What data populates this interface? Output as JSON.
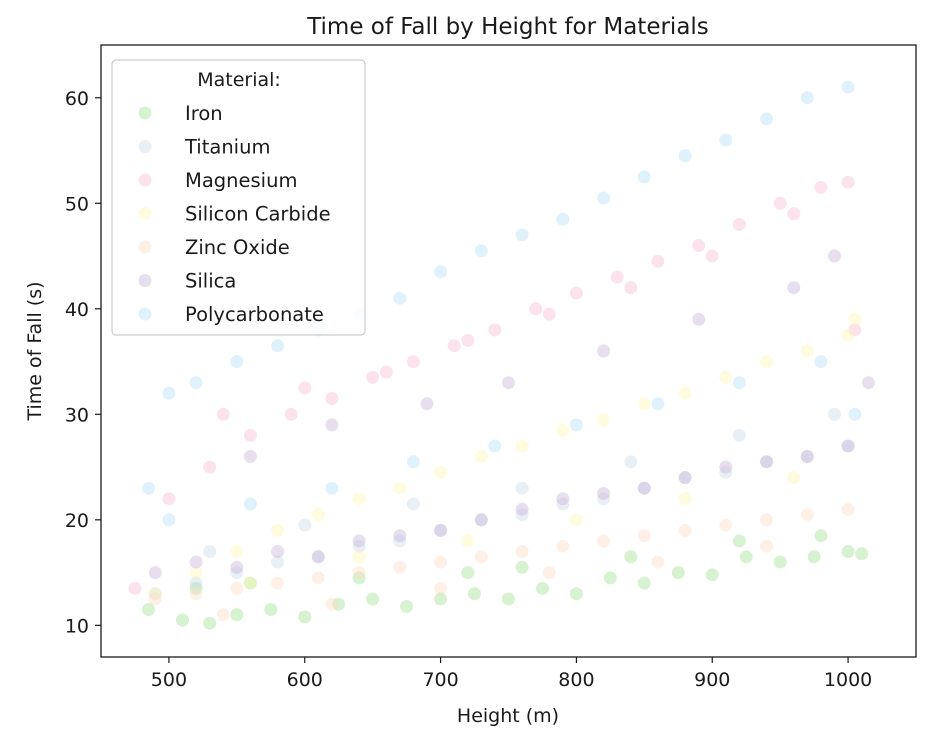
{
  "chart_data": {
    "type": "scatter",
    "title": "Time of Fall by Height for Materials",
    "xlabel": "Height (m)",
    "ylabel": "Time of Fall (s)",
    "xlim": [
      450,
      1050
    ],
    "ylim": [
      7,
      65
    ],
    "xticks": [
      500,
      600,
      700,
      800,
      900,
      1000
    ],
    "yticks": [
      10,
      20,
      30,
      40,
      50,
      60
    ],
    "grid": false,
    "marker_opacity": 0.4,
    "legend": {
      "title": "Material:",
      "placement": "top-left"
    },
    "series": [
      {
        "name": "Iron",
        "color": "#98df8a",
        "x": [
          485,
          510,
          530,
          550,
          575,
          600,
          625,
          650,
          675,
          700,
          725,
          750,
          775,
          800,
          825,
          850,
          875,
          900,
          925,
          950,
          975,
          1000,
          1010,
          520,
          560,
          640,
          720,
          760,
          840,
          920,
          980
        ],
        "y": [
          11.5,
          10.5,
          10.2,
          11.0,
          11.5,
          10.8,
          12.0,
          12.5,
          11.8,
          12.5,
          13.0,
          12.5,
          13.5,
          13.0,
          14.5,
          14.0,
          15.0,
          14.8,
          16.5,
          16.0,
          16.5,
          17.0,
          16.8,
          13.5,
          14.0,
          14.5,
          15.0,
          15.5,
          16.5,
          18.0,
          18.5
        ]
      },
      {
        "name": "Titanium",
        "color": "#c5d6e6",
        "x": [
          490,
          520,
          550,
          580,
          610,
          640,
          670,
          700,
          730,
          760,
          790,
          820,
          850,
          880,
          910,
          940,
          970,
          1000,
          530,
          600,
          680,
          760,
          840,
          920,
          990
        ],
        "y": [
          13.0,
          14.0,
          15.0,
          16.0,
          16.5,
          17.5,
          18.0,
          19.0,
          20.0,
          20.5,
          21.5,
          22.0,
          23.0,
          24.0,
          24.5,
          25.5,
          26.0,
          27.0,
          17.0,
          19.5,
          21.5,
          23.0,
          25.5,
          28.0,
          30.0
        ]
      },
      {
        "name": "Magnesium",
        "color": "#f7b6d2",
        "x": [
          475,
          500,
          530,
          560,
          590,
          620,
          650,
          680,
          710,
          740,
          770,
          800,
          830,
          860,
          890,
          920,
          950,
          980,
          1000,
          1005,
          540,
          600,
          660,
          720,
          780,
          840,
          900,
          960
        ],
        "y": [
          13.5,
          22.0,
          25.0,
          28.0,
          30.0,
          31.5,
          33.5,
          35.0,
          36.5,
          38.0,
          40.0,
          41.5,
          43.0,
          44.5,
          46.0,
          48.0,
          50.0,
          51.5,
          52.0,
          38.0,
          30.0,
          32.5,
          34.0,
          37.0,
          39.5,
          42.0,
          45.0,
          49.0
        ]
      },
      {
        "name": "Silicon Carbide",
        "color": "#fdf6b0",
        "x": [
          490,
          520,
          550,
          580,
          610,
          640,
          670,
          700,
          730,
          760,
          790,
          820,
          850,
          880,
          910,
          940,
          970,
          1000,
          1005,
          560,
          640,
          720,
          800,
          880,
          960
        ],
        "y": [
          13.0,
          15.0,
          17.0,
          19.0,
          20.5,
          22.0,
          23.0,
          24.5,
          26.0,
          27.0,
          28.5,
          29.5,
          31.0,
          32.0,
          33.5,
          35.0,
          36.0,
          37.5,
          39.0,
          14.0,
          16.5,
          18.0,
          20.0,
          22.0,
          24.0
        ]
      },
      {
        "name": "Zinc Oxide",
        "color": "#fcd9c4",
        "x": [
          490,
          520,
          550,
          580,
          610,
          640,
          670,
          700,
          730,
          760,
          790,
          820,
          850,
          880,
          910,
          940,
          970,
          1000,
          540,
          620,
          700,
          780,
          860,
          940
        ],
        "y": [
          12.5,
          13.0,
          13.5,
          14.0,
          14.5,
          15.0,
          15.5,
          16.0,
          16.5,
          17.0,
          17.5,
          18.0,
          18.5,
          19.0,
          19.5,
          20.0,
          20.5,
          21.0,
          11.0,
          12.0,
          13.5,
          15.0,
          16.0,
          17.5
        ]
      },
      {
        "name": "Silica",
        "color": "#c5b0d5",
        "x": [
          490,
          520,
          550,
          580,
          610,
          640,
          670,
          700,
          730,
          760,
          790,
          820,
          850,
          880,
          910,
          940,
          970,
          1000,
          1015,
          560,
          620,
          690,
          750,
          820,
          890,
          960,
          990
        ],
        "y": [
          15.0,
          16.0,
          15.5,
          17.0,
          16.5,
          18.0,
          18.5,
          19.0,
          20.0,
          21.0,
          22.0,
          22.5,
          23.0,
          24.0,
          25.0,
          25.5,
          26.0,
          27.0,
          33.0,
          26.0,
          29.0,
          31.0,
          33.0,
          36.0,
          39.0,
          42.0,
          45.0
        ]
      },
      {
        "name": "Polycarbonate",
        "color": "#aedff7",
        "x": [
          485,
          500,
          520,
          550,
          580,
          610,
          640,
          670,
          700,
          730,
          760,
          790,
          820,
          850,
          880,
          910,
          940,
          970,
          1000,
          1005,
          500,
          560,
          620,
          680,
          740,
          800,
          860,
          920,
          980
        ],
        "y": [
          23.0,
          32.0,
          33.0,
          35.0,
          36.5,
          38.0,
          39.5,
          41.0,
          43.5,
          45.5,
          47.0,
          48.5,
          50.5,
          52.5,
          54.5,
          56.0,
          58.0,
          60.0,
          61.0,
          30.0,
          20.0,
          21.5,
          23.0,
          25.5,
          27.0,
          29.0,
          31.0,
          33.0,
          35.0
        ]
      }
    ]
  }
}
